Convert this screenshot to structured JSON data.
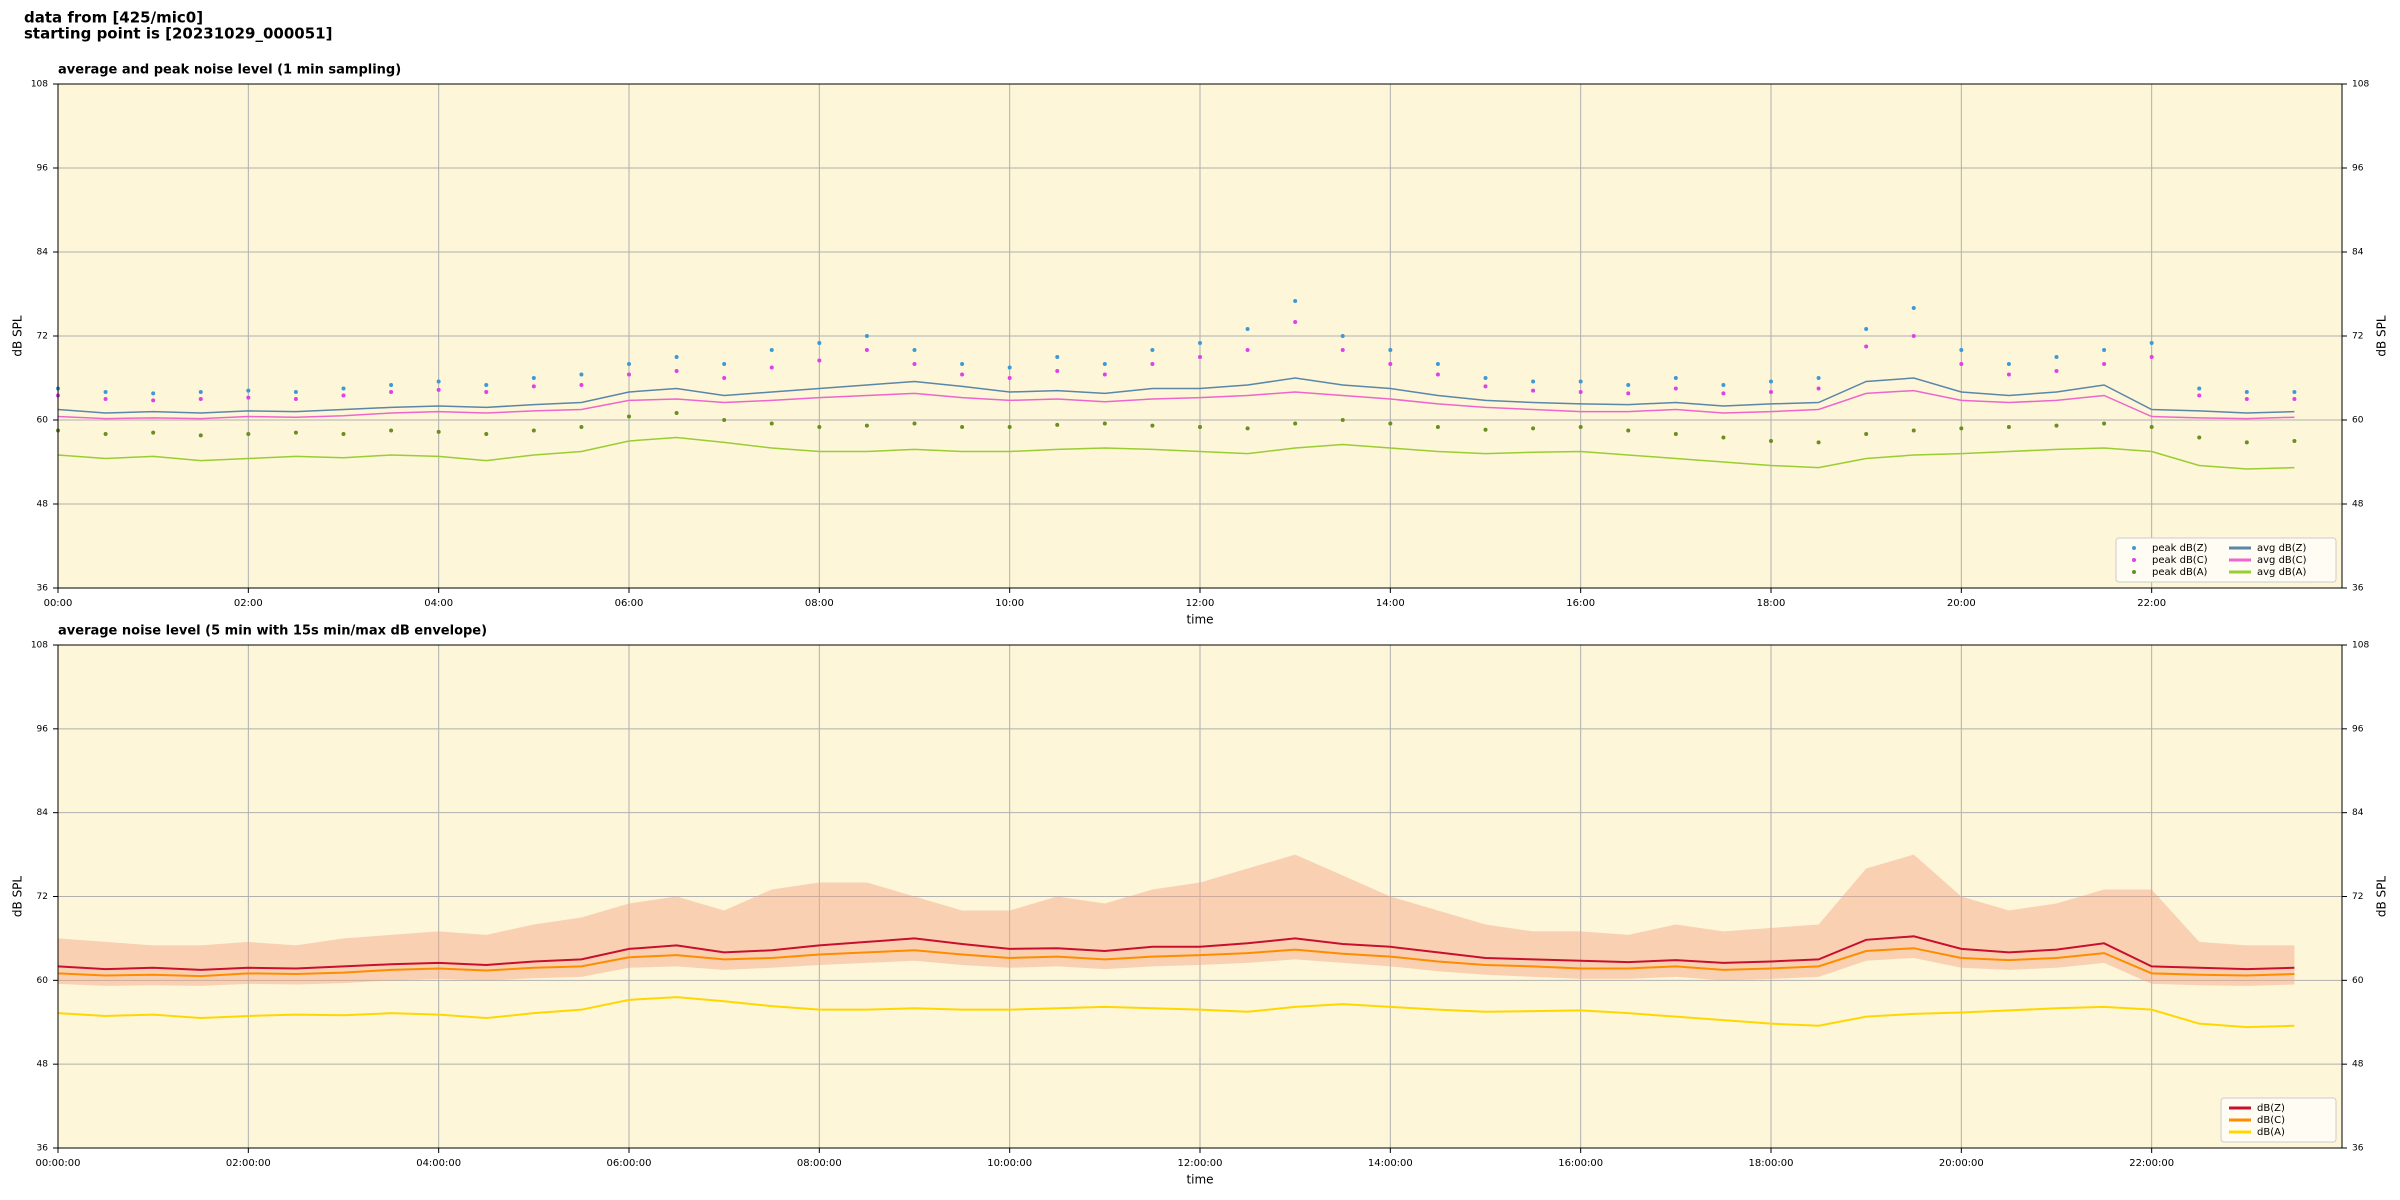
{
  "header": {
    "lines": [
      "data from [425/mic0]",
      "starting point is [20231029_000051]"
    ]
  },
  "chart_data": [
    {
      "type": "line",
      "title": "average and peak noise level (1 min sampling)",
      "xlabel": "time",
      "ylabel": "dB SPL",
      "y2label": "dB SPL",
      "xlim": [
        0,
        24
      ],
      "xticks": [
        {
          "value": 0,
          "label": "00:00"
        },
        {
          "value": 2,
          "label": "02:00"
        },
        {
          "value": 4,
          "label": "04:00"
        },
        {
          "value": 6,
          "label": "06:00"
        },
        {
          "value": 8,
          "label": "08:00"
        },
        {
          "value": 10,
          "label": "10:00"
        },
        {
          "value": 12,
          "label": "12:00"
        },
        {
          "value": 14,
          "label": "14:00"
        },
        {
          "value": 16,
          "label": "16:00"
        },
        {
          "value": 18,
          "label": "18:00"
        },
        {
          "value": 20,
          "label": "20:00"
        },
        {
          "value": 22,
          "label": "22:00"
        }
      ],
      "ylim": [
        36,
        108
      ],
      "yticks": [
        36,
        48,
        60,
        72,
        84,
        96,
        108
      ],
      "y2lim": [
        36,
        108
      ],
      "y2ticks": [
        36,
        48,
        60,
        72,
        84,
        96,
        108
      ],
      "grid": true,
      "background": "#fdf6d9",
      "legend": "lower right",
      "legend_columns": 2,
      "x": [
        0,
        0.5,
        1,
        1.5,
        2,
        2.5,
        3,
        3.5,
        4,
        4.5,
        5,
        5.5,
        6,
        6.5,
        7,
        7.5,
        8,
        8.5,
        9,
        9.5,
        10,
        10.5,
        11,
        11.5,
        12,
        12.5,
        13,
        13.5,
        14,
        14.5,
        15,
        15.5,
        16,
        16.5,
        17,
        17.5,
        18,
        18.5,
        19,
        19.5,
        20,
        20.5,
        21,
        21.5,
        22,
        22.5,
        23,
        23.5
      ],
      "series": [
        {
          "name": "peak dB(Z)",
          "mode": "scatter",
          "color": "#3d9ad6",
          "values": [
            64.5,
            64,
            63.8,
            64,
            64.2,
            64,
            64.5,
            65,
            65.5,
            65,
            66,
            66.5,
            68,
            69,
            68,
            70,
            71,
            72,
            70,
            68,
            67.5,
            69,
            68,
            70,
            71,
            73,
            77,
            72,
            70,
            68,
            66,
            65.5,
            65.5,
            65,
            66,
            65,
            65.5,
            66,
            73,
            76,
            70,
            68,
            69,
            70,
            71,
            64.5,
            64,
            64
          ]
        },
        {
          "name": "peak dB(C)",
          "mode": "scatter",
          "color": "#e040e8",
          "values": [
            63.5,
            63,
            62.8,
            63,
            63.2,
            63,
            63.5,
            64,
            64.3,
            64,
            64.8,
            65,
            66.5,
            67,
            66,
            67.5,
            68.5,
            70,
            68,
            66.5,
            66,
            67,
            66.5,
            68,
            69,
            70,
            74,
            70,
            68,
            66.5,
            64.8,
            64.2,
            64,
            63.8,
            64.5,
            63.8,
            64,
            64.5,
            70.5,
            72,
            68,
            66.5,
            67,
            68,
            69,
            63.5,
            63,
            63
          ]
        },
        {
          "name": "peak dB(A)",
          "mode": "scatter",
          "color": "#6b8e23",
          "values": [
            58.5,
            58,
            58.2,
            57.8,
            58,
            58.2,
            58,
            58.5,
            58.3,
            58,
            58.5,
            59,
            60.5,
            61,
            60,
            59.5,
            59,
            59.2,
            59.5,
            59,
            59,
            59.3,
            59.5,
            59.2,
            59,
            58.8,
            59.5,
            60,
            59.5,
            59,
            58.6,
            58.8,
            59,
            58.5,
            58,
            57.5,
            57,
            56.8,
            58,
            58.5,
            58.8,
            59,
            59.2,
            59.5,
            59,
            57.5,
            56.8,
            57
          ]
        },
        {
          "name": "avg dB(Z)",
          "mode": "line",
          "color": "#5a86a8",
          "values": [
            61.5,
            61,
            61.2,
            61,
            61.3,
            61.2,
            61.5,
            61.8,
            62,
            61.8,
            62.2,
            62.5,
            64,
            64.5,
            63.5,
            64,
            64.5,
            65,
            65.5,
            64.8,
            64,
            64.2,
            63.8,
            64.5,
            64.5,
            65,
            66,
            65,
            64.5,
            63.5,
            62.8,
            62.5,
            62.3,
            62.2,
            62.5,
            62,
            62.3,
            62.5,
            65.5,
            66,
            64,
            63.5,
            64,
            65,
            61.5,
            61.3,
            61,
            61.2
          ]
        },
        {
          "name": "avg dB(C)",
          "mode": "line",
          "color": "#ee66cc",
          "values": [
            60.5,
            60.2,
            60.3,
            60.2,
            60.5,
            60.4,
            60.6,
            61,
            61.2,
            61,
            61.3,
            61.5,
            62.8,
            63,
            62.5,
            62.8,
            63.2,
            63.5,
            63.8,
            63.2,
            62.8,
            63,
            62.6,
            63,
            63.2,
            63.5,
            64,
            63.5,
            63,
            62.3,
            61.8,
            61.5,
            61.2,
            61.2,
            61.5,
            61,
            61.2,
            61.5,
            63.8,
            64.2,
            62.8,
            62.5,
            62.8,
            63.5,
            60.5,
            60.3,
            60.2,
            60.4
          ]
        },
        {
          "name": "avg dB(A)",
          "mode": "line",
          "color": "#9acd32",
          "values": [
            55,
            54.5,
            54.8,
            54.2,
            54.5,
            54.8,
            54.6,
            55,
            54.8,
            54.2,
            55,
            55.5,
            57,
            57.5,
            56.8,
            56,
            55.5,
            55.5,
            55.8,
            55.5,
            55.5,
            55.8,
            56,
            55.8,
            55.5,
            55.2,
            56,
            56.5,
            56,
            55.5,
            55.2,
            55.4,
            55.5,
            55,
            54.5,
            54,
            53.5,
            53.2,
            54.5,
            55,
            55.2,
            55.5,
            55.8,
            56,
            55.5,
            53.5,
            53,
            53.2
          ]
        }
      ]
    },
    {
      "type": "line",
      "title": "average noise level (5 min with 15s min/max dB envelope)",
      "xlabel": "time",
      "ylabel": "dB SPL",
      "y2label": "dB SPL",
      "xlim": [
        0,
        24
      ],
      "xticks": [
        {
          "value": 0,
          "label": "00:00:00"
        },
        {
          "value": 2,
          "label": "02:00:00"
        },
        {
          "value": 4,
          "label": "04:00:00"
        },
        {
          "value": 6,
          "label": "06:00:00"
        },
        {
          "value": 8,
          "label": "08:00:00"
        },
        {
          "value": 10,
          "label": "10:00:00"
        },
        {
          "value": 12,
          "label": "12:00:00"
        },
        {
          "value": 14,
          "label": "14:00:00"
        },
        {
          "value": 16,
          "label": "16:00:00"
        },
        {
          "value": 18,
          "label": "18:00:00"
        },
        {
          "value": 20,
          "label": "20:00:00"
        },
        {
          "value": 22,
          "label": "22:00:00"
        }
      ],
      "ylim": [
        36,
        108
      ],
      "yticks": [
        36,
        48,
        60,
        72,
        84,
        96,
        108
      ],
      "y2lim": [
        36,
        108
      ],
      "y2ticks": [
        36,
        48,
        60,
        72,
        84,
        96,
        108
      ],
      "grid": true,
      "background": "#fdf6d9",
      "legend": "lower right",
      "legend_columns": 1,
      "x": [
        0,
        0.5,
        1,
        1.5,
        2,
        2.5,
        3,
        3.5,
        4,
        4.5,
        5,
        5.5,
        6,
        6.5,
        7,
        7.5,
        8,
        8.5,
        9,
        9.5,
        10,
        10.5,
        11,
        11.5,
        12,
        12.5,
        13,
        13.5,
        14,
        14.5,
        15,
        15.5,
        16,
        16.5,
        17,
        17.5,
        18,
        18.5,
        19,
        19.5,
        20,
        20.5,
        21,
        21.5,
        22,
        22.5,
        23,
        23.5
      ],
      "envelope": {
        "color": "#f4a582",
        "upper": [
          66,
          65.5,
          65,
          65,
          65.5,
          65,
          66,
          66.5,
          67,
          66.5,
          68,
          69,
          71,
          72,
          70,
          73,
          74,
          74,
          72,
          70,
          70,
          72,
          71,
          73,
          74,
          76,
          78,
          75,
          72,
          70,
          68,
          67,
          67,
          66.5,
          68,
          67,
          67.5,
          68,
          76,
          78,
          72,
          70,
          71,
          73,
          73,
          65.5,
          65,
          65
        ],
        "lower": [
          59.5,
          59.2,
          59.3,
          59.2,
          59.5,
          59.4,
          59.6,
          60,
          60.2,
          60,
          60.3,
          60.5,
          61.8,
          62,
          61.5,
          61.8,
          62.2,
          62.5,
          62.8,
          62.2,
          61.8,
          62,
          61.6,
          62,
          62.2,
          62.5,
          63,
          62.5,
          62,
          61.3,
          60.8,
          60.5,
          60.2,
          60.2,
          60.5,
          60,
          60.2,
          60.5,
          62.8,
          63.2,
          61.8,
          61.5,
          61.8,
          62.5,
          59.5,
          59.3,
          59.2,
          59.4
        ]
      },
      "series": [
        {
          "name": "dB(Z)",
          "mode": "line",
          "color": "#c8102e",
          "values": [
            62,
            61.6,
            61.8,
            61.5,
            61.8,
            61.7,
            62,
            62.3,
            62.5,
            62.2,
            62.7,
            63,
            64.5,
            65,
            64,
            64.3,
            65,
            65.5,
            66,
            65.2,
            64.5,
            64.6,
            64.2,
            64.8,
            64.8,
            65.3,
            66,
            65.2,
            64.8,
            64,
            63.2,
            63,
            62.8,
            62.6,
            62.9,
            62.5,
            62.7,
            63,
            65.8,
            66.3,
            64.5,
            64,
            64.4,
            65.3,
            62,
            61.8,
            61.6,
            61.8
          ]
        },
        {
          "name": "dB(C)",
          "mode": "line",
          "color": "#ff8c00",
          "values": [
            61,
            60.7,
            60.8,
            60.6,
            61,
            60.9,
            61.1,
            61.5,
            61.7,
            61.4,
            61.8,
            62,
            63.3,
            63.6,
            63,
            63.2,
            63.7,
            64,
            64.3,
            63.7,
            63.2,
            63.4,
            63,
            63.4,
            63.6,
            63.9,
            64.4,
            63.8,
            63.4,
            62.7,
            62.2,
            62,
            61.7,
            61.7,
            62,
            61.5,
            61.7,
            62,
            64.2,
            64.6,
            63.2,
            62.9,
            63.2,
            63.9,
            61,
            60.8,
            60.7,
            60.9
          ]
        },
        {
          "name": "dB(A)",
          "mode": "line",
          "color": "#ffd700",
          "values": [
            55.3,
            54.9,
            55.1,
            54.6,
            54.9,
            55.1,
            55,
            55.3,
            55.1,
            54.6,
            55.3,
            55.8,
            57.2,
            57.6,
            57,
            56.3,
            55.8,
            55.8,
            56,
            55.8,
            55.8,
            56,
            56.2,
            56,
            55.8,
            55.5,
            56.2,
            56.6,
            56.2,
            55.8,
            55.5,
            55.6,
            55.7,
            55.3,
            54.8,
            54.3,
            53.8,
            53.5,
            54.8,
            55.2,
            55.4,
            55.7,
            56,
            56.2,
            55.8,
            53.8,
            53.3,
            53.5
          ]
        }
      ]
    }
  ]
}
